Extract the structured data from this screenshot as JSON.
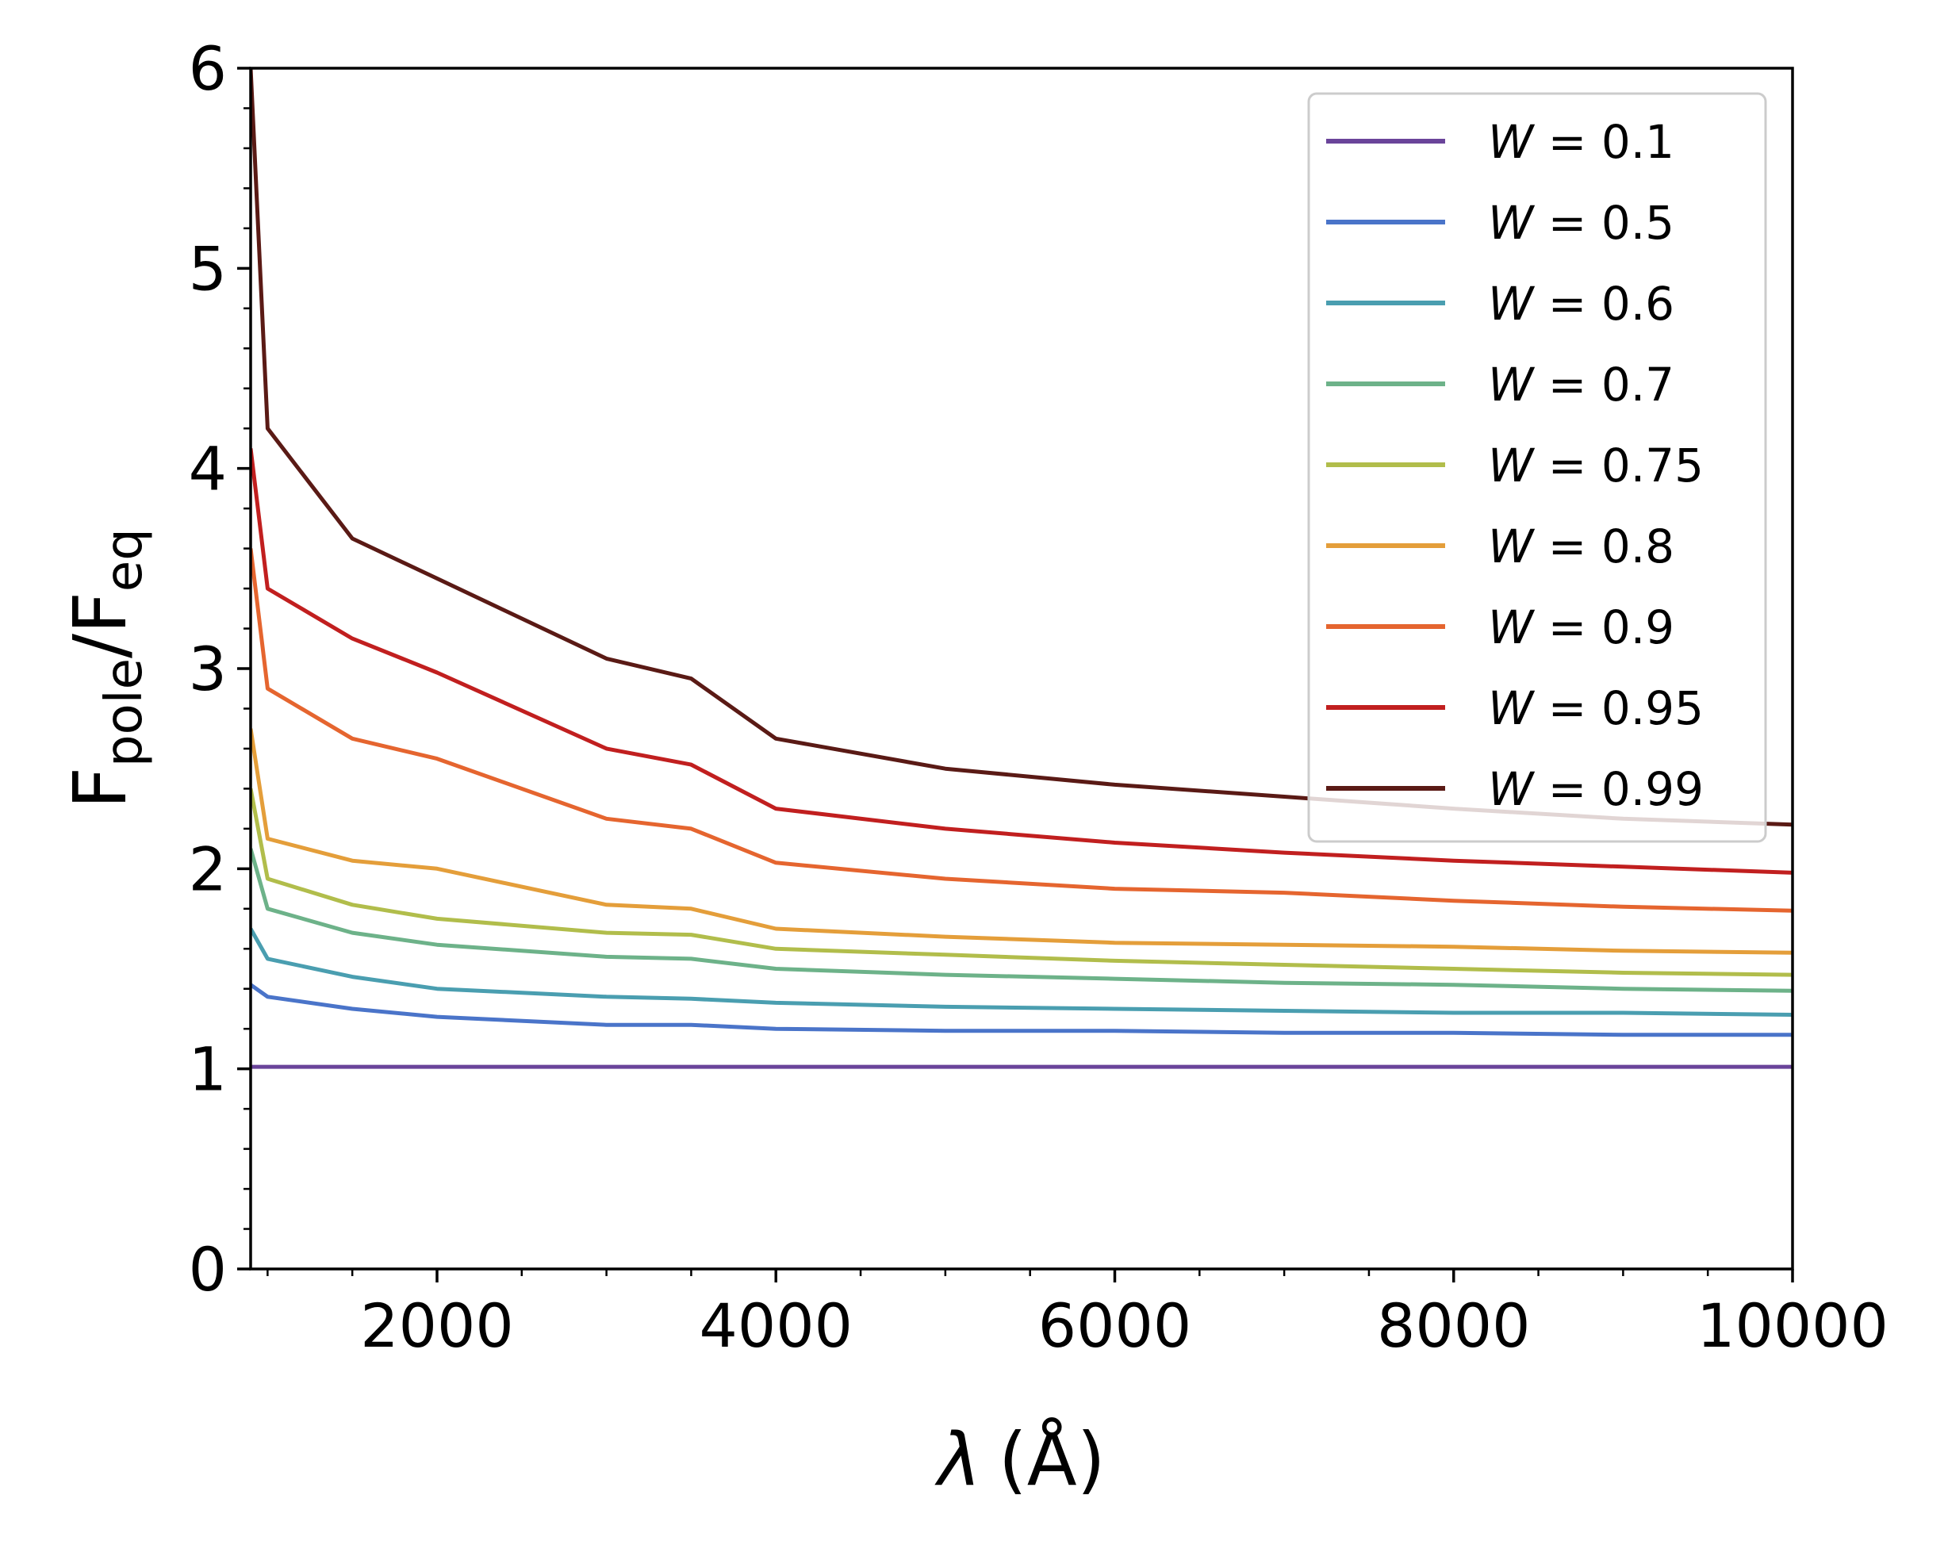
{
  "chart_data": {
    "type": "line",
    "title": "",
    "xlabel": {
      "symbol": "λ",
      "unit": "(Å)"
    },
    "ylabel": {
      "base": "F",
      "num_sub": "pole",
      "sep": "/",
      "den_base": "F",
      "den_sub": "eq"
    },
    "xlim": [
      900,
      10000
    ],
    "ylim": [
      0,
      6
    ],
    "xticks": [
      2000,
      4000,
      6000,
      8000,
      10000
    ],
    "yticks": [
      0,
      1,
      2,
      3,
      4,
      5,
      6
    ],
    "legend": {
      "position": "top-right",
      "prefix": "W",
      "equals": "="
    },
    "series": [
      {
        "name": "0.1",
        "color": "#6a449a",
        "x": [
          900,
          1000,
          1500,
          2000,
          3000,
          3500,
          4000,
          5000,
          6000,
          7000,
          8000,
          9000,
          10000
        ],
        "y": [
          1.01,
          1.01,
          1.01,
          1.01,
          1.01,
          1.01,
          1.01,
          1.01,
          1.01,
          1.01,
          1.01,
          1.01,
          1.01
        ]
      },
      {
        "name": "0.5",
        "color": "#4a74c9",
        "x": [
          900,
          1000,
          1500,
          2000,
          3000,
          3500,
          4000,
          5000,
          6000,
          7000,
          8000,
          9000,
          10000
        ],
        "y": [
          1.42,
          1.36,
          1.3,
          1.26,
          1.22,
          1.22,
          1.2,
          1.19,
          1.19,
          1.18,
          1.18,
          1.17,
          1.17
        ]
      },
      {
        "name": "0.6",
        "color": "#4a9eb0",
        "x": [
          900,
          1000,
          1500,
          2000,
          3000,
          3500,
          4000,
          5000,
          6000,
          7000,
          8000,
          9000,
          10000
        ],
        "y": [
          1.7,
          1.55,
          1.46,
          1.4,
          1.36,
          1.35,
          1.33,
          1.31,
          1.3,
          1.29,
          1.28,
          1.28,
          1.27
        ]
      },
      {
        "name": "0.7",
        "color": "#6db289",
        "x": [
          900,
          1000,
          1500,
          2000,
          3000,
          3500,
          4000,
          5000,
          6000,
          7000,
          8000,
          9000,
          10000
        ],
        "y": [
          2.1,
          1.8,
          1.68,
          1.62,
          1.56,
          1.55,
          1.5,
          1.47,
          1.45,
          1.43,
          1.42,
          1.4,
          1.39
        ]
      },
      {
        "name": "0.75",
        "color": "#b1bd4b",
        "x": [
          900,
          1000,
          1500,
          2000,
          3000,
          3500,
          4000,
          5000,
          6000,
          7000,
          8000,
          9000,
          10000
        ],
        "y": [
          2.4,
          1.95,
          1.82,
          1.75,
          1.68,
          1.67,
          1.6,
          1.57,
          1.54,
          1.52,
          1.5,
          1.48,
          1.47
        ]
      },
      {
        "name": "0.8",
        "color": "#e49e3a",
        "x": [
          900,
          1000,
          1500,
          2000,
          3000,
          3500,
          4000,
          5000,
          6000,
          7000,
          8000,
          9000,
          10000
        ],
        "y": [
          2.7,
          2.15,
          2.04,
          2.0,
          1.82,
          1.8,
          1.7,
          1.66,
          1.63,
          1.62,
          1.61,
          1.59,
          1.58
        ]
      },
      {
        "name": "0.9",
        "color": "#e5652f",
        "x": [
          900,
          1000,
          1500,
          2000,
          3000,
          3500,
          4000,
          5000,
          6000,
          7000,
          8000,
          9000,
          10000
        ],
        "y": [
          3.6,
          2.9,
          2.65,
          2.55,
          2.25,
          2.2,
          2.03,
          1.95,
          1.9,
          1.88,
          1.84,
          1.81,
          1.79
        ]
      },
      {
        "name": "0.95",
        "color": "#c11f1f",
        "x": [
          900,
          1000,
          1500,
          2000,
          3000,
          3500,
          4000,
          5000,
          6000,
          7000,
          8000,
          9000,
          10000
        ],
        "y": [
          4.1,
          3.4,
          3.15,
          2.98,
          2.6,
          2.52,
          2.3,
          2.2,
          2.13,
          2.08,
          2.04,
          2.01,
          1.98
        ]
      },
      {
        "name": "0.99",
        "color": "#5a1a15",
        "x": [
          900,
          1000,
          1500,
          2000,
          3000,
          3500,
          4000,
          5000,
          6000,
          7000,
          8000,
          9000,
          10000
        ],
        "y": [
          6.0,
          4.2,
          3.65,
          3.45,
          3.05,
          2.95,
          2.65,
          2.5,
          2.42,
          2.36,
          2.3,
          2.25,
          2.22
        ]
      }
    ]
  }
}
